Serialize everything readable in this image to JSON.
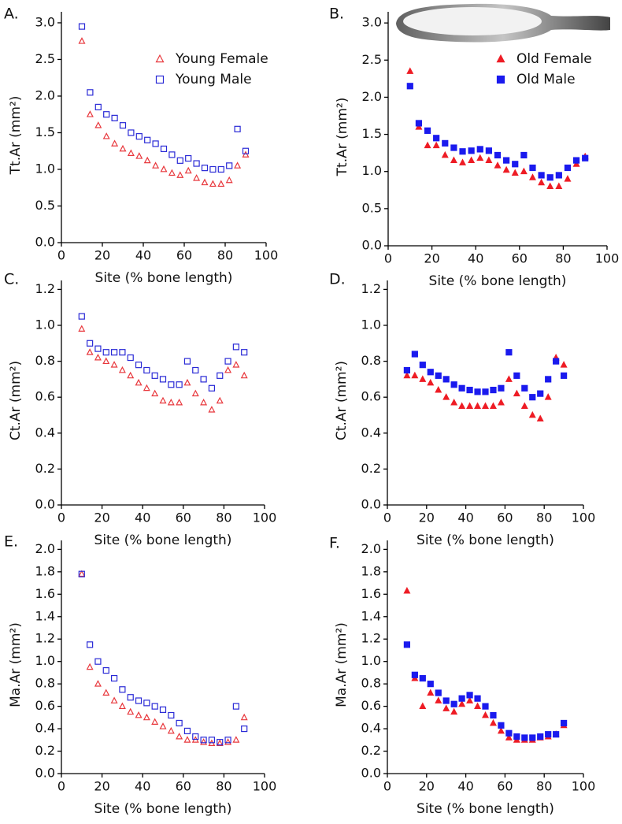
{
  "chart_data": [
    {
      "type": "scatter",
      "label": "A.",
      "ylabel": "Tt.Ar (mm²)",
      "xlabel": "Site (% bone length)",
      "x": [
        10,
        14,
        18,
        22,
        26,
        30,
        34,
        38,
        42,
        46,
        50,
        54,
        58,
        62,
        66,
        70,
        74,
        78,
        82,
        86,
        90
      ],
      "series": [
        {
          "name": "Young Female",
          "color": "#e8383d",
          "marker": "triangle",
          "filled": false,
          "values": [
            2.75,
            1.75,
            1.6,
            1.45,
            1.35,
            1.28,
            1.22,
            1.18,
            1.12,
            1.05,
            1.0,
            0.95,
            0.92,
            0.98,
            0.88,
            0.82,
            0.8,
            0.8,
            0.85,
            1.05,
            1.2
          ]
        },
        {
          "name": "Young Male",
          "color": "#2a2ad6",
          "marker": "square",
          "filled": false,
          "values": [
            2.95,
            2.05,
            1.85,
            1.75,
            1.7,
            1.6,
            1.5,
            1.45,
            1.4,
            1.35,
            1.28,
            1.2,
            1.12,
            1.15,
            1.08,
            1.02,
            1.0,
            1.0,
            1.05,
            1.55,
            1.25
          ]
        }
      ],
      "xlim": [
        0,
        100
      ],
      "xticks": [
        0,
        20,
        40,
        60,
        80,
        100
      ],
      "ylim": [
        0,
        3.15
      ],
      "yticks": [
        {
          "value": 0,
          "label": "0.0"
        },
        0.5,
        {
          "value": 1,
          "label": "1.0"
        },
        1.5,
        {
          "value": 2,
          "label": "2.0"
        },
        2.5,
        {
          "value": 3,
          "label": "3.0"
        }
      ],
      "legend": "upper right"
    },
    {
      "type": "scatter",
      "label": "B.",
      "ylabel": "Tt.Ar (mm²)",
      "xlabel": "Site (% bone length)",
      "x": [
        10,
        14,
        18,
        22,
        26,
        30,
        34,
        38,
        42,
        46,
        50,
        54,
        58,
        62,
        66,
        70,
        74,
        78,
        82,
        86,
        90
      ],
      "series": [
        {
          "name": "Old Female",
          "color": "#ee1c25",
          "marker": "triangle",
          "filled": true,
          "values": [
            2.35,
            1.6,
            1.35,
            1.35,
            1.22,
            1.15,
            1.12,
            1.15,
            1.18,
            1.15,
            1.08,
            1.02,
            0.98,
            1.0,
            0.92,
            0.85,
            0.8,
            0.8,
            0.9,
            1.1,
            1.2
          ]
        },
        {
          "name": "Old Male",
          "color": "#1a1aee",
          "marker": "square",
          "filled": true,
          "values": [
            2.15,
            1.65,
            1.55,
            1.45,
            1.38,
            1.32,
            1.27,
            1.28,
            1.3,
            1.28,
            1.22,
            1.15,
            1.1,
            1.22,
            1.05,
            0.95,
            0.92,
            0.95,
            1.05,
            1.15,
            1.18
          ]
        }
      ],
      "xlim": [
        0,
        100
      ],
      "xticks": [
        0,
        20,
        40,
        60,
        80,
        100
      ],
      "ylim": [
        0,
        3.15
      ],
      "yticks": [
        {
          "value": 0,
          "label": "0.0"
        },
        0.5,
        {
          "value": 1,
          "label": "1.0"
        },
        1.5,
        {
          "value": 2,
          "label": "2.0"
        },
        2.5,
        {
          "value": 3,
          "label": "3.0"
        }
      ],
      "legend": "upper right"
    },
    {
      "type": "scatter",
      "label": "C.",
      "ylabel": "Ct.Ar (mm²)",
      "xlabel": "Site (% bone length)",
      "x": [
        10,
        14,
        18,
        22,
        26,
        30,
        34,
        38,
        42,
        46,
        50,
        54,
        58,
        62,
        66,
        70,
        74,
        78,
        82,
        86,
        90
      ],
      "series": [
        {
          "color": "#e8383d",
          "marker": "triangle",
          "filled": false,
          "values": [
            0.98,
            0.85,
            0.82,
            0.8,
            0.78,
            0.75,
            0.72,
            0.68,
            0.65,
            0.62,
            0.58,
            0.57,
            0.57,
            0.68,
            0.62,
            0.57,
            0.53,
            0.58,
            0.75,
            0.78,
            0.72
          ]
        },
        {
          "color": "#2a2ad6",
          "marker": "square",
          "filled": false,
          "values": [
            1.05,
            0.9,
            0.87,
            0.85,
            0.85,
            0.85,
            0.82,
            0.78,
            0.75,
            0.72,
            0.7,
            0.67,
            0.67,
            0.8,
            0.75,
            0.7,
            0.65,
            0.72,
            0.8,
            0.88,
            0.85
          ]
        }
      ],
      "xlim": [
        0,
        100
      ],
      "xticks": [
        0,
        20,
        40,
        60,
        80,
        100
      ],
      "ylim": [
        0,
        1.25
      ],
      "yticks": [
        {
          "value": 0,
          "label": "0.0"
        },
        0.2,
        0.4,
        0.6,
        0.8,
        {
          "value": 1,
          "label": "1.0"
        },
        1.2
      ]
    },
    {
      "type": "scatter",
      "label": "D.",
      "ylabel": "Ct.Ar (mm²)",
      "xlabel": "Site (% bone length)",
      "x": [
        10,
        14,
        18,
        22,
        26,
        30,
        34,
        38,
        42,
        46,
        50,
        54,
        58,
        62,
        66,
        70,
        74,
        78,
        82,
        86,
        90
      ],
      "series": [
        {
          "color": "#ee1c25",
          "marker": "triangle",
          "filled": true,
          "values": [
            0.72,
            0.72,
            0.7,
            0.68,
            0.64,
            0.6,
            0.57,
            0.55,
            0.55,
            0.55,
            0.55,
            0.55,
            0.57,
            0.7,
            0.62,
            0.55,
            0.5,
            0.48,
            0.6,
            0.82,
            0.78
          ]
        },
        {
          "color": "#1a1aee",
          "marker": "square",
          "filled": true,
          "values": [
            0.75,
            0.84,
            0.78,
            0.74,
            0.72,
            0.7,
            0.67,
            0.65,
            0.64,
            0.63,
            0.63,
            0.64,
            0.65,
            0.85,
            0.72,
            0.65,
            0.6,
            0.62,
            0.7,
            0.8,
            0.72
          ]
        }
      ],
      "xlim": [
        0,
        100
      ],
      "xticks": [
        0,
        20,
        40,
        60,
        80,
        100
      ],
      "ylim": [
        0,
        1.25
      ],
      "yticks": [
        {
          "value": 0,
          "label": "0.0"
        },
        0.2,
        0.4,
        0.6,
        0.8,
        {
          "value": 1,
          "label": "1.0"
        },
        1.2
      ]
    },
    {
      "type": "scatter",
      "label": "E.",
      "ylabel": "Ma.Ar (mm²)",
      "xlabel": "Site (% bone length)",
      "x": [
        10,
        14,
        18,
        22,
        26,
        30,
        34,
        38,
        42,
        46,
        50,
        54,
        58,
        62,
        66,
        70,
        74,
        78,
        82,
        86,
        90
      ],
      "series": [
        {
          "color": "#e8383d",
          "marker": "triangle",
          "filled": false,
          "values": [
            1.78,
            0.95,
            0.8,
            0.72,
            0.65,
            0.6,
            0.55,
            0.52,
            0.5,
            0.46,
            0.42,
            0.38,
            0.33,
            0.3,
            0.3,
            0.28,
            0.27,
            0.27,
            0.28,
            0.3,
            0.5
          ]
        },
        {
          "color": "#2a2ad6",
          "marker": "square",
          "filled": false,
          "values": [
            1.78,
            1.15,
            1.0,
            0.92,
            0.85,
            0.75,
            0.68,
            0.65,
            0.63,
            0.6,
            0.57,
            0.52,
            0.45,
            0.38,
            0.33,
            0.3,
            0.3,
            0.28,
            0.3,
            0.6,
            0.4
          ]
        }
      ],
      "xlim": [
        0,
        100
      ],
      "xticks": [
        0,
        20,
        40,
        60,
        80,
        100
      ],
      "ylim": [
        0,
        2.08
      ],
      "yticks": [
        {
          "value": 0,
          "label": "0.0"
        },
        0.2,
        0.4,
        0.6,
        0.8,
        {
          "value": 1,
          "label": "1.0"
        },
        1.2,
        1.4,
        1.6,
        1.8,
        {
          "value": 2,
          "label": "2.0"
        }
      ]
    },
    {
      "type": "scatter",
      "label": "F.",
      "ylabel": "Ma.Ar (mm²)",
      "xlabel": "Site (% bone length)",
      "x": [
        10,
        14,
        18,
        22,
        26,
        30,
        34,
        38,
        42,
        46,
        50,
        54,
        58,
        62,
        66,
        70,
        74,
        78,
        82,
        86,
        90
      ],
      "series": [
        {
          "color": "#ee1c25",
          "marker": "triangle",
          "filled": true,
          "values": [
            1.63,
            0.85,
            0.6,
            0.72,
            0.65,
            0.58,
            0.55,
            0.62,
            0.65,
            0.6,
            0.52,
            0.45,
            0.38,
            0.32,
            0.3,
            0.3,
            0.3,
            0.32,
            0.33,
            0.35,
            0.43
          ]
        },
        {
          "color": "#1a1aee",
          "marker": "square",
          "filled": true,
          "values": [
            1.15,
            0.88,
            0.85,
            0.8,
            0.72,
            0.65,
            0.62,
            0.67,
            0.7,
            0.67,
            0.6,
            0.52,
            0.43,
            0.36,
            0.33,
            0.32,
            0.32,
            0.33,
            0.35,
            0.35,
            0.45
          ]
        }
      ],
      "xlim": [
        0,
        100
      ],
      "xticks": [
        0,
        20,
        40,
        60,
        80,
        100
      ],
      "ylim": [
        0,
        2.08
      ],
      "yticks": [
        {
          "value": 0,
          "label": "0.0"
        },
        0.2,
        0.4,
        0.6,
        0.8,
        {
          "value": 1,
          "label": "1.0"
        },
        1.2,
        1.4,
        1.6,
        1.8,
        {
          "value": 2,
          "label": "2.0"
        }
      ]
    }
  ]
}
